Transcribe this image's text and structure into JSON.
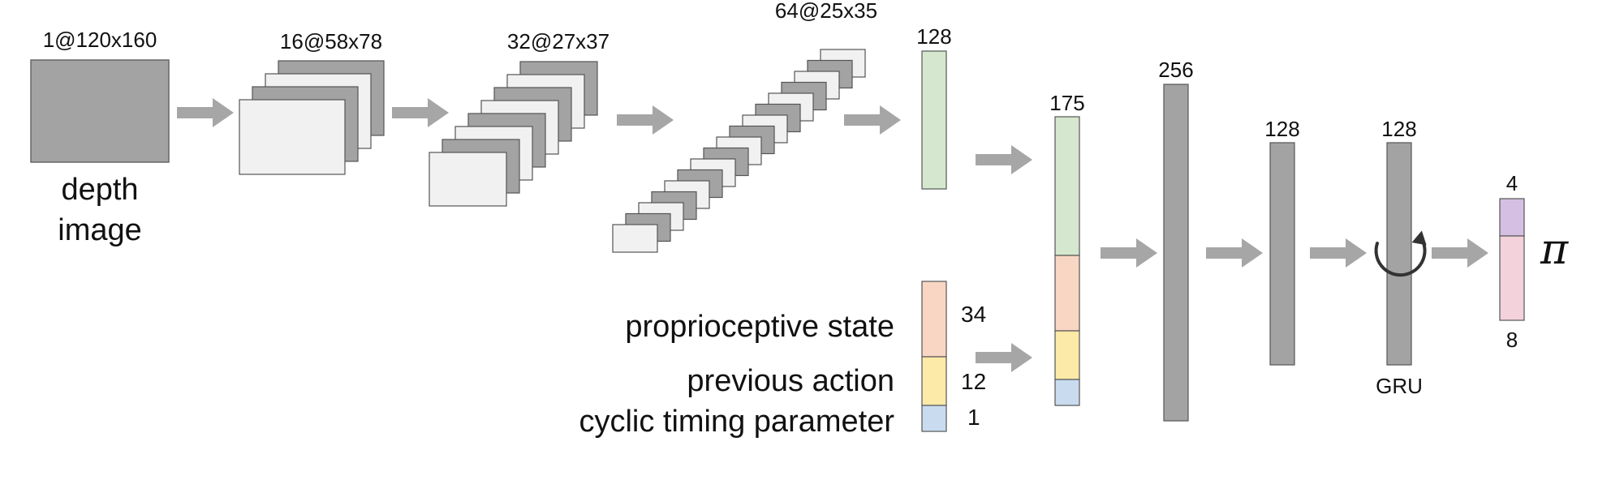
{
  "input": {
    "dims": "1@120x160",
    "caption_line1": "depth",
    "caption_line2": "image"
  },
  "conv_layers": [
    {
      "dims": "16@58x78",
      "maps": 4
    },
    {
      "dims": "32@27x37",
      "maps": 7
    },
    {
      "dims": "64@25x35",
      "maps": 17
    }
  ],
  "vision_feature": {
    "size": "128"
  },
  "extra_inputs": [
    {
      "label": "proprioceptive state",
      "size": "34",
      "color": "#f9d6c4"
    },
    {
      "label": "previous action",
      "size": "12",
      "color": "#fceaa8"
    },
    {
      "label": "cyclic timing parameter",
      "size": "1",
      "color": "#c9dcef"
    }
  ],
  "concat": {
    "size": "175"
  },
  "mlp_layers": [
    {
      "size": "256"
    },
    {
      "size": "128"
    }
  ],
  "gru": {
    "size": "128",
    "label": "GRU"
  },
  "output": {
    "symbol": "π",
    "top_size": "4",
    "bottom_size": "8",
    "top_color": "#d5c0e3",
    "bottom_color": "#f3d2dc"
  },
  "colors": {
    "feature_green": "#d5e8cf",
    "layer_gray": "#a3a3a3",
    "map_light": "#f1f1f1",
    "arrow_gray": "#a6a6a6"
  }
}
